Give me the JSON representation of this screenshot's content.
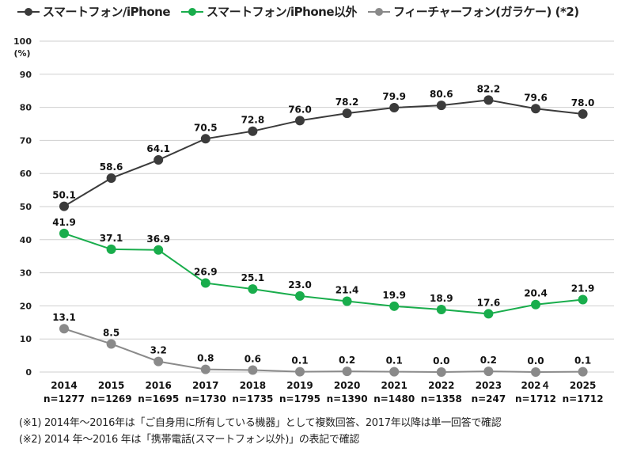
{
  "chart_data": {
    "type": "line",
    "categories": [
      "2014",
      "2015",
      "2016",
      "2017",
      "2018",
      "2019",
      "2020",
      "2021",
      "2022",
      "2023",
      "202４",
      "2025"
    ],
    "sample_sizes": [
      "n=1277",
      "n=1269",
      "n=1695",
      "n=1730",
      "n=1735",
      "n=1795",
      "n=1390",
      "n=1480",
      "n=1358",
      "n=247",
      "n=1712",
      "n=1712"
    ],
    "ylabel": "(%)",
    "ylim": [
      0,
      100
    ],
    "yticks": [
      0,
      10,
      20,
      30,
      40,
      50,
      60,
      70,
      80,
      90,
      100
    ],
    "grid": true,
    "legend_position": "top",
    "series": [
      {
        "name": "スマートフォン/iPhone",
        "color": "#3b3b3b",
        "values": [
          50.1,
          58.6,
          64.1,
          70.5,
          72.8,
          76.0,
          78.2,
          79.9,
          80.6,
          82.2,
          79.6,
          78.0
        ]
      },
      {
        "name": "スマートフォン/iPhone以外",
        "color": "#19ad4c",
        "values": [
          41.9,
          37.1,
          36.9,
          26.9,
          25.1,
          23.0,
          21.4,
          19.9,
          18.9,
          17.6,
          20.4,
          21.9
        ]
      },
      {
        "name": "フィーチャーフォン(ガラケー) (*2)",
        "color": "#8a8a8a",
        "values": [
          13.1,
          8.5,
          3.2,
          0.8,
          0.6,
          0.1,
          0.2,
          0.1,
          0.0,
          0.2,
          0.0,
          0.1
        ]
      }
    ]
  },
  "footnotes": [
    "(※1) 2014年～2016年は「ご自身用に所有している機器」として複数回答、2017年以降は単一回答で確認",
    "(※2) 2014 年～2016 年は「携帯電話(スマートフォン以外)」の表記で確認"
  ]
}
